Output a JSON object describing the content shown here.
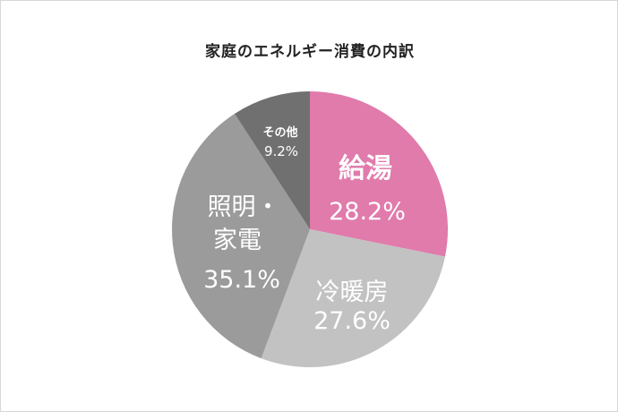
{
  "chart_data": {
    "type": "pie",
    "title": "家庭のエネルギー消費の内訳",
    "slices": [
      {
        "label": "給湯",
        "value": 28.2,
        "value_text": "28.2%",
        "color": "#e07bab"
      },
      {
        "label": "冷暖房",
        "value": 27.6,
        "value_text": "27.6%",
        "color": "#c2c2c2"
      },
      {
        "label": "照明・家電",
        "label_lines": [
          "照明・",
          "家電"
        ],
        "value": 35.1,
        "value_text": "35.1%",
        "color": "#9b9b9b"
      },
      {
        "label": "その他",
        "value": 9.2,
        "value_text": "9.2%",
        "color": "#707070"
      }
    ],
    "start_angle": "12 o'clock",
    "direction": "clockwise",
    "legend": "none"
  }
}
